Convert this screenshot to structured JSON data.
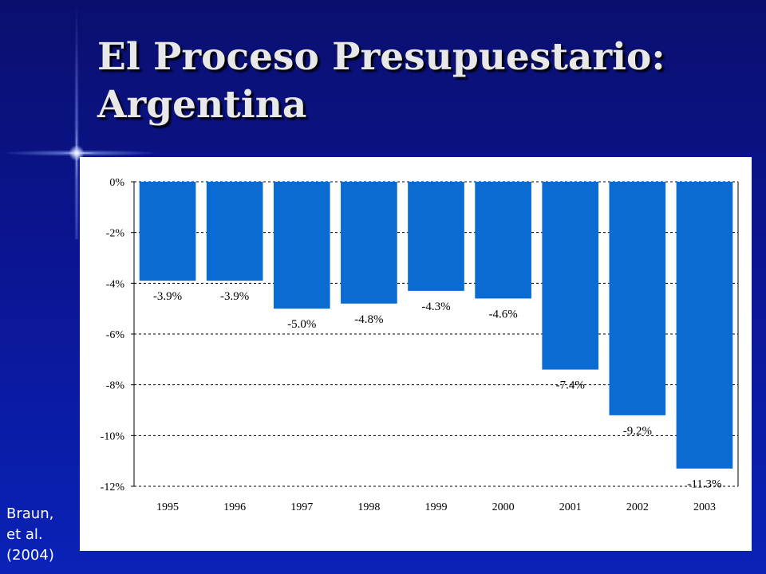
{
  "slide": {
    "title_line1": "El Proceso Presupuestario:",
    "title_line2": "Argentina",
    "citation": [
      "Braun,",
      "et al.",
      "(2004)"
    ]
  },
  "colors": {
    "bar": "#0a6bd2",
    "background": "#0b1592",
    "panel": "#ffffff"
  },
  "chart_data": {
    "type": "bar",
    "categories": [
      "1995",
      "1996",
      "1997",
      "1998",
      "1999",
      "2000",
      "2001",
      "2002",
      "2003"
    ],
    "values": [
      -3.9,
      -3.9,
      -5.0,
      -4.8,
      -4.3,
      -4.6,
      -7.4,
      -9.2,
      -11.3
    ],
    "value_labels": [
      "-3.9%",
      "-3.9%",
      "-5.0%",
      "-4.8%",
      "-4.3%",
      "-4.6%",
      "-7.4%",
      "-9.2%",
      "-11.3%"
    ],
    "y_ticks": [
      0,
      -2,
      -4,
      -6,
      -8,
      -10,
      -12
    ],
    "y_tick_labels": [
      "0%",
      "-2%",
      "-4%",
      "-6%",
      "-8%",
      "-10%",
      "-12%"
    ],
    "ylim": [
      -12,
      0
    ],
    "grid": "horizontal dashed",
    "title": "",
    "xlabel": "",
    "ylabel": ""
  }
}
